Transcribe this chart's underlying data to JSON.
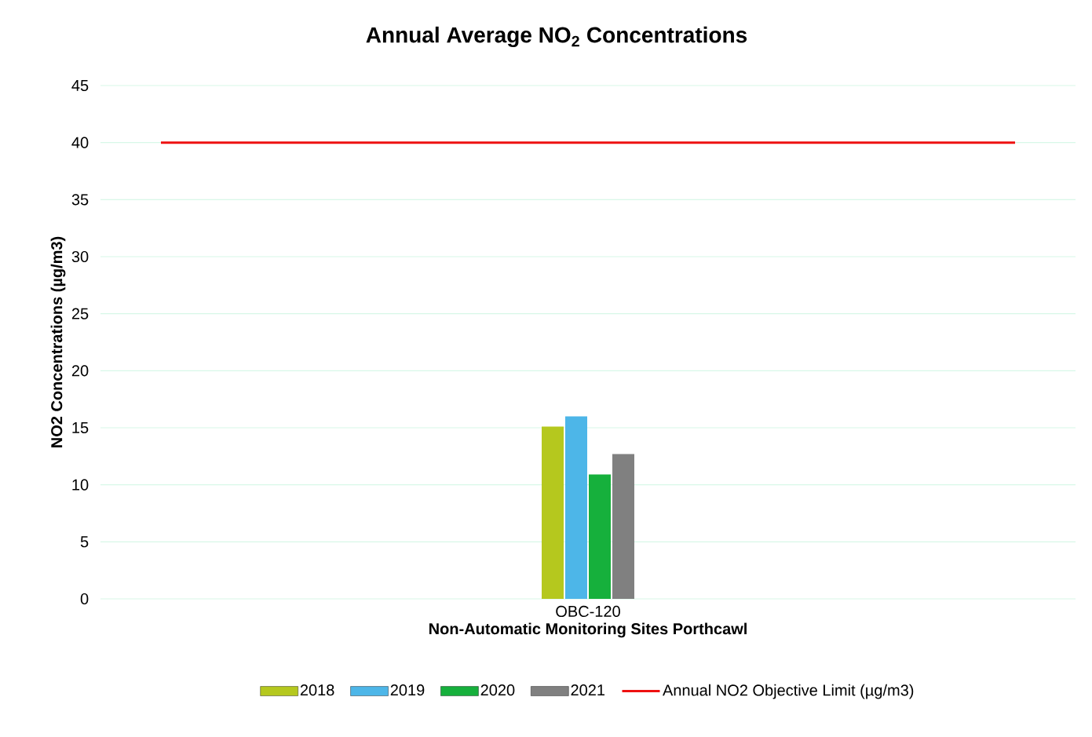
{
  "chart_data": {
    "type": "bar",
    "title": "Annual Average NO$_{2}$ Concentrations",
    "xlabel": "Non-Automatic Monitoring Sites Porthcawl",
    "ylabel": "NO2 Concentrations (µg/m3)",
    "categories": [
      "OBC-120"
    ],
    "series": [
      {
        "name": "2018",
        "color": "#b5c81e",
        "values": [
          15.1
        ]
      },
      {
        "name": "2019",
        "color": "#4db6e8",
        "values": [
          16.0
        ]
      },
      {
        "name": "2020",
        "color": "#16b03c",
        "values": [
          10.9
        ]
      },
      {
        "name": "2021",
        "color": "#808080",
        "values": [
          12.7
        ]
      }
    ],
    "ref_lines": [
      {
        "axis": "y",
        "value": 40,
        "label": "Annual NO2 Objective Limit (µg/m3)",
        "color": "#ee1111"
      }
    ],
    "ylim": [
      0,
      45
    ],
    "yticks": [
      0,
      5,
      10,
      15,
      20,
      25,
      30,
      35,
      40,
      45
    ],
    "grid": "y",
    "legend": "bottom"
  }
}
